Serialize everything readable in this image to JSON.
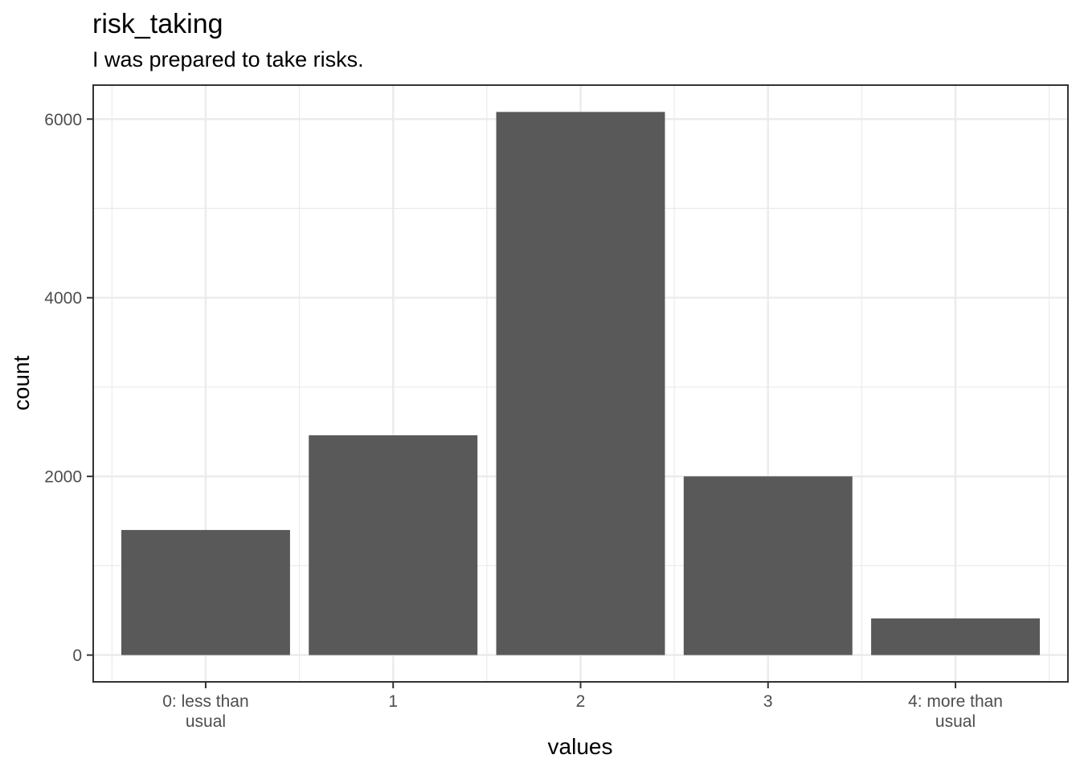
{
  "chart_data": {
    "type": "bar",
    "title": "risk_taking",
    "subtitle": "I was prepared to take risks.",
    "xlabel": "values",
    "ylabel": "count",
    "categories": [
      [
        "0: less than",
        "usual"
      ],
      [
        "1"
      ],
      [
        "2"
      ],
      [
        "3"
      ],
      [
        "4: more than",
        "usual"
      ]
    ],
    "values": [
      1400,
      2460,
      6080,
      2000,
      410
    ],
    "ylim": [
      -300,
      6380
    ],
    "y_ticks": [
      0,
      2000,
      4000,
      6000
    ],
    "y_tick_labels": [
      "0",
      "2000",
      "4000",
      "6000"
    ],
    "y_minor_ticks": [
      1000,
      3000,
      5000
    ],
    "grid": true,
    "theme": {
      "bar_color": "#595959",
      "grid_color": "#ebebeb",
      "panel_border": "#333333",
      "tick_text": "#4d4d4d"
    }
  }
}
